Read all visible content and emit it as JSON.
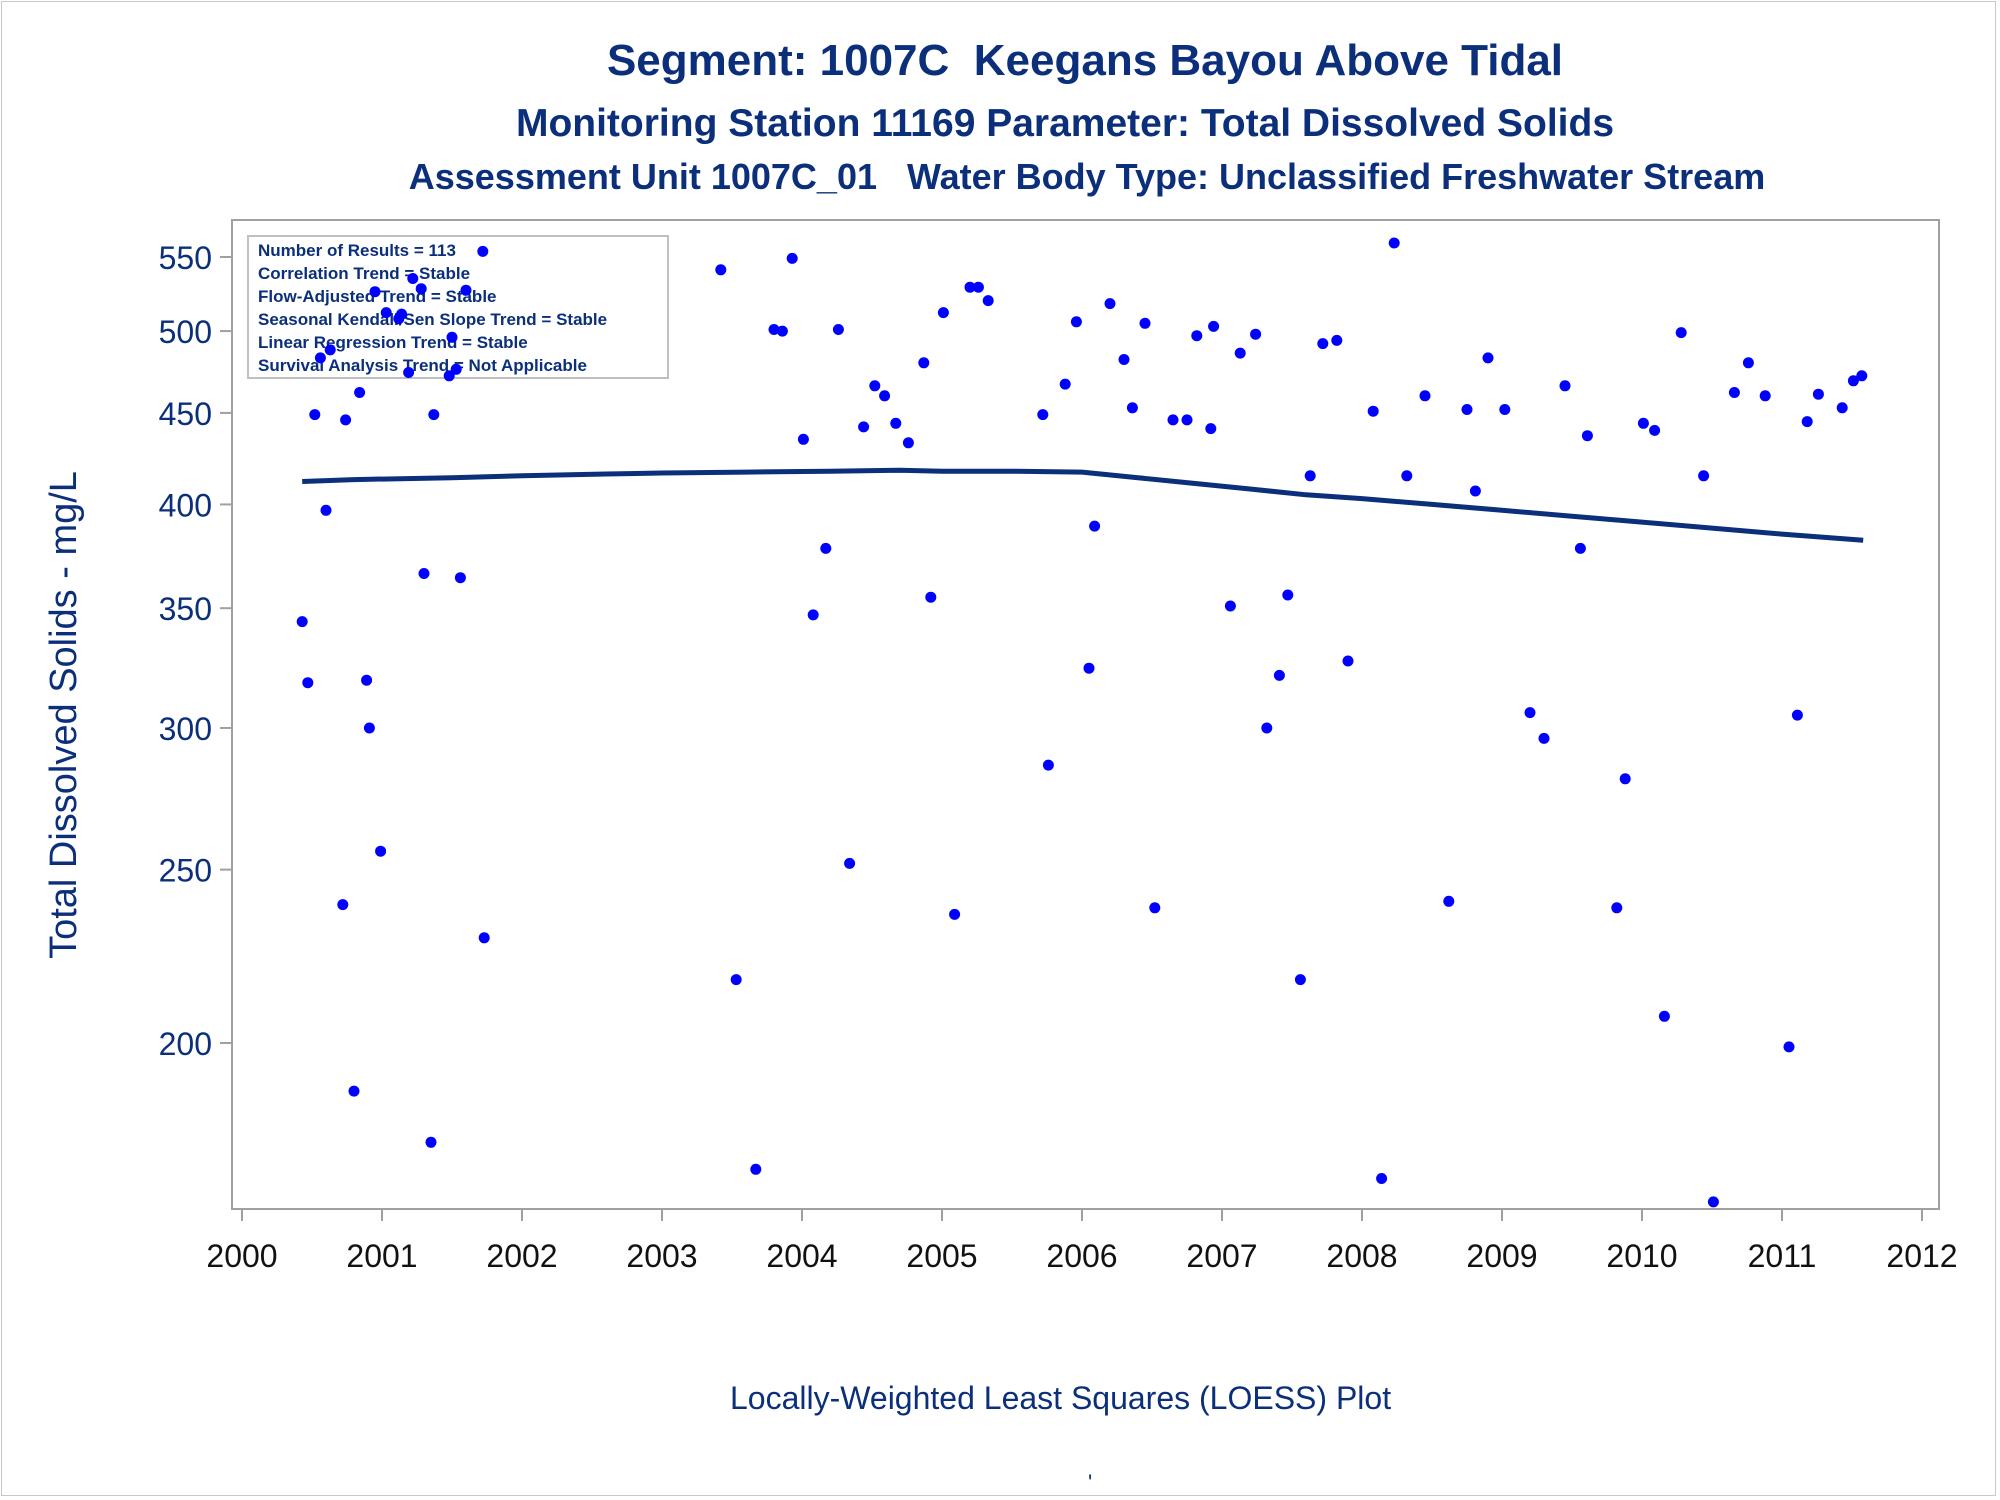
{
  "titles": {
    "line1": "Segment: 1007C  Keegans Bayou Above Tidal",
    "line2": "Monitoring Station 11169 Parameter: Total Dissolved Solids",
    "line3": "Assessment Unit 1007C_01   Water Body Type: Unclassified Freshwater Stream"
  },
  "footer": {
    "caption": "Locally-Weighted Least Squares (LOESS) Plot",
    "mark": "'"
  },
  "colors": {
    "points": "#0000ff",
    "loess": "#0b2f7a",
    "text": "#0b2f7a",
    "frame": "#a0a0a0"
  },
  "chart_data": {
    "type": "scatter",
    "title": "",
    "xlabel": "",
    "ylabel": "Total Dissolved Solids - mg/L",
    "y_scale": "log",
    "xlim": [
      2000,
      2012
    ],
    "ylim": [
      158,
      575
    ],
    "x_ticks": [
      "2000",
      "2001",
      "2002",
      "2003",
      "2004",
      "2005",
      "2006",
      "2007",
      "2008",
      "2009",
      "2010",
      "2011",
      "2012"
    ],
    "y_ticks": [
      200,
      250,
      300,
      350,
      400,
      450,
      500,
      550
    ],
    "legend_box": {
      "position": "top-left",
      "lines": [
        "Number of Results = 113",
        "Correlation Trend = Stable",
        "Flow-Adjusted Trend = Stable",
        "Seasonal Kendall/Sen Slope Trend = Stable",
        "Linear Regression Trend = Stable",
        "Survival Analysis Trend = Not Applicable"
      ]
    },
    "series": [
      {
        "kind": "points",
        "points": [
          [
            2000.43,
            344
          ],
          [
            2000.47,
            318
          ],
          [
            2000.52,
            449
          ],
          [
            2000.56,
            483
          ],
          [
            2000.6,
            397
          ],
          [
            2000.63,
            488
          ],
          [
            2000.72,
            239
          ],
          [
            2000.74,
            446
          ],
          [
            2000.8,
            188
          ],
          [
            2000.84,
            462
          ],
          [
            2000.89,
            319
          ],
          [
            2000.91,
            300
          ],
          [
            2000.95,
            526
          ],
          [
            2000.99,
            256
          ],
          [
            2001.03,
            512
          ],
          [
            2001.12,
            508
          ],
          [
            2001.14,
            511
          ],
          [
            2001.19,
            474
          ],
          [
            2001.22,
            535
          ],
          [
            2001.28,
            528
          ],
          [
            2001.3,
            366
          ],
          [
            2001.35,
            176
          ],
          [
            2001.37,
            449
          ],
          [
            2001.48,
            472
          ],
          [
            2001.5,
            496
          ],
          [
            2001.53,
            476
          ],
          [
            2001.56,
            364
          ],
          [
            2001.6,
            527
          ],
          [
            2001.72,
            554
          ],
          [
            2001.73,
            229
          ],
          [
            2003.42,
            541
          ],
          [
            2003.53,
            217
          ],
          [
            2003.67,
            170
          ],
          [
            2003.8,
            501
          ],
          [
            2003.86,
            500
          ],
          [
            2003.93,
            549
          ],
          [
            2004.01,
            435
          ],
          [
            2004.08,
            347
          ],
          [
            2004.17,
            378
          ],
          [
            2004.26,
            501
          ],
          [
            2004.34,
            252
          ],
          [
            2004.44,
            442
          ],
          [
            2004.52,
            466
          ],
          [
            2004.59,
            460
          ],
          [
            2004.67,
            444
          ],
          [
            2004.76,
            433
          ],
          [
            2004.87,
            480
          ],
          [
            2004.92,
            355
          ],
          [
            2005.01,
            512
          ],
          [
            2005.09,
            236
          ],
          [
            2005.2,
            529
          ],
          [
            2005.26,
            529
          ],
          [
            2005.33,
            520
          ],
          [
            2005.72,
            449
          ],
          [
            2005.76,
            286
          ],
          [
            2005.88,
            467
          ],
          [
            2005.96,
            506
          ],
          [
            2006.05,
            324
          ],
          [
            2006.09,
            389
          ],
          [
            2006.2,
            518
          ],
          [
            2006.3,
            482
          ],
          [
            2006.36,
            453
          ],
          [
            2006.45,
            505
          ],
          [
            2006.52,
            238
          ],
          [
            2006.65,
            446
          ],
          [
            2006.75,
            446
          ],
          [
            2006.82,
            497
          ],
          [
            2006.92,
            441
          ],
          [
            2006.94,
            503
          ],
          [
            2007.06,
            351
          ],
          [
            2007.13,
            486
          ],
          [
            2007.24,
            498
          ],
          [
            2007.32,
            300
          ],
          [
            2007.41,
            321
          ],
          [
            2007.47,
            356
          ],
          [
            2007.56,
            217
          ],
          [
            2007.63,
            415
          ],
          [
            2007.72,
            492
          ],
          [
            2007.82,
            494
          ],
          [
            2007.9,
            327
          ],
          [
            2008.08,
            451
          ],
          [
            2008.14,
            168
          ],
          [
            2008.23,
            560
          ],
          [
            2008.32,
            415
          ],
          [
            2008.45,
            460
          ],
          [
            2008.62,
            240
          ],
          [
            2008.75,
            452
          ],
          [
            2008.81,
            407
          ],
          [
            2008.9,
            483
          ],
          [
            2009.02,
            452
          ],
          [
            2009.2,
            306
          ],
          [
            2009.3,
            296
          ],
          [
            2009.45,
            466
          ],
          [
            2009.56,
            378
          ],
          [
            2009.61,
            437
          ],
          [
            2009.82,
            238
          ],
          [
            2009.88,
            281
          ],
          [
            2010.01,
            444
          ],
          [
            2010.09,
            440
          ],
          [
            2010.16,
            207
          ],
          [
            2010.28,
            499
          ],
          [
            2010.44,
            415
          ],
          [
            2010.51,
            163
          ],
          [
            2010.66,
            462
          ],
          [
            2010.76,
            480
          ],
          [
            2010.88,
            460
          ],
          [
            2011.05,
            199
          ],
          [
            2011.11,
            305
          ],
          [
            2011.18,
            445
          ],
          [
            2011.26,
            461
          ],
          [
            2011.43,
            453
          ],
          [
            2011.51,
            469
          ],
          [
            2011.57,
            472
          ]
        ]
      },
      {
        "kind": "loess-line",
        "points": [
          [
            2000.43,
            412
          ],
          [
            2000.8,
            413
          ],
          [
            2001.5,
            414
          ],
          [
            2002.0,
            415
          ],
          [
            2002.6,
            416
          ],
          [
            2003.0,
            416.5
          ],
          [
            2003.6,
            417
          ],
          [
            2004.2,
            417.5
          ],
          [
            2004.7,
            418
          ],
          [
            2005.0,
            417.5
          ],
          [
            2005.5,
            417.5
          ],
          [
            2006.0,
            417
          ],
          [
            2006.4,
            414
          ],
          [
            2006.8,
            411
          ],
          [
            2007.2,
            408
          ],
          [
            2007.6,
            405
          ],
          [
            2008.0,
            403
          ],
          [
            2008.5,
            400
          ],
          [
            2009.0,
            397
          ],
          [
            2009.5,
            394
          ],
          [
            2010.0,
            391
          ],
          [
            2010.5,
            388
          ],
          [
            2011.0,
            385
          ],
          [
            2011.58,
            382
          ]
        ]
      }
    ]
  }
}
